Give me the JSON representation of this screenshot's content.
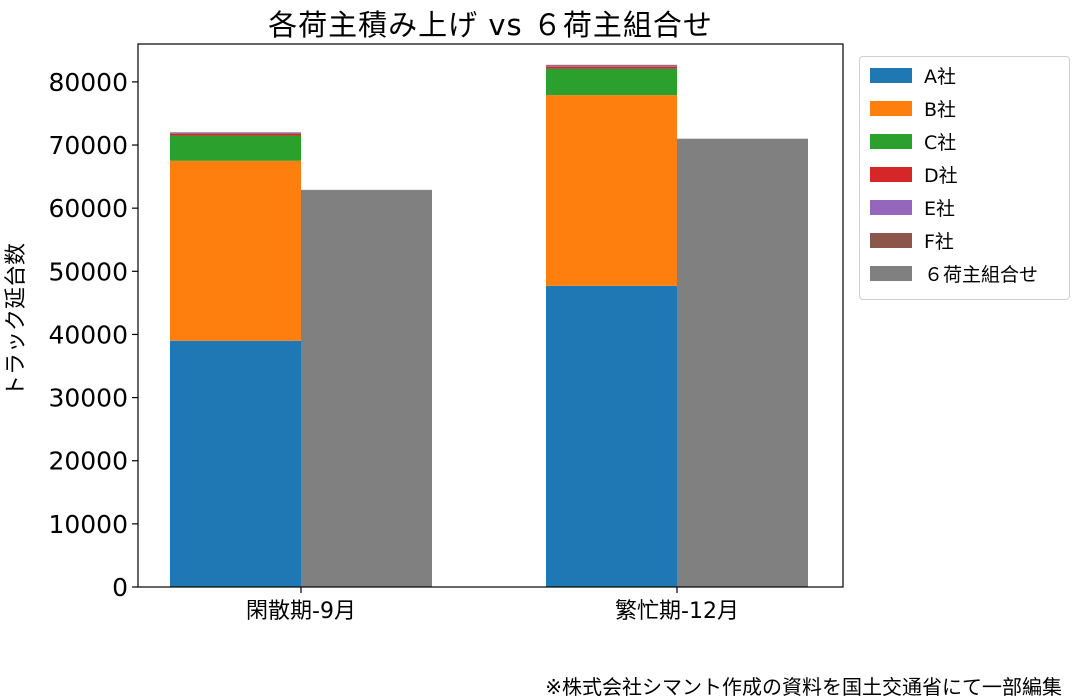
{
  "chart_data": {
    "type": "bar",
    "title": "各荷主積み上げ vs ６荷主組合せ",
    "ylabel": "トラック延台数",
    "xlabel": "",
    "categories": [
      "閑散期-9月",
      "繁忙期-12月"
    ],
    "ylim": [
      0,
      86000
    ],
    "yticks": [
      0,
      10000,
      20000,
      30000,
      40000,
      50000,
      60000,
      70000,
      80000
    ],
    "grid": false,
    "legend_position": "outside-right",
    "stacked_series": [
      {
        "name": "A社",
        "color": "#1f77b4",
        "values": [
          39000,
          47700
        ]
      },
      {
        "name": "B社",
        "color": "#ff7f0e",
        "values": [
          28500,
          30200
        ]
      },
      {
        "name": "C社",
        "color": "#2ca02c",
        "values": [
          4000,
          4200
        ]
      },
      {
        "name": "D社",
        "color": "#d62728",
        "values": [
          250,
          300
        ]
      },
      {
        "name": "E社",
        "color": "#9467bd",
        "values": [
          150,
          150
        ]
      },
      {
        "name": "F社",
        "color": "#8c564b",
        "values": [
          100,
          150
        ]
      }
    ],
    "combined_series": {
      "name": "６荷主組合せ",
      "color": "#808080",
      "values": [
        62900,
        71000
      ]
    }
  },
  "footnote": "※株式会社シマント作成の資料を国土交通省にて一部編集"
}
